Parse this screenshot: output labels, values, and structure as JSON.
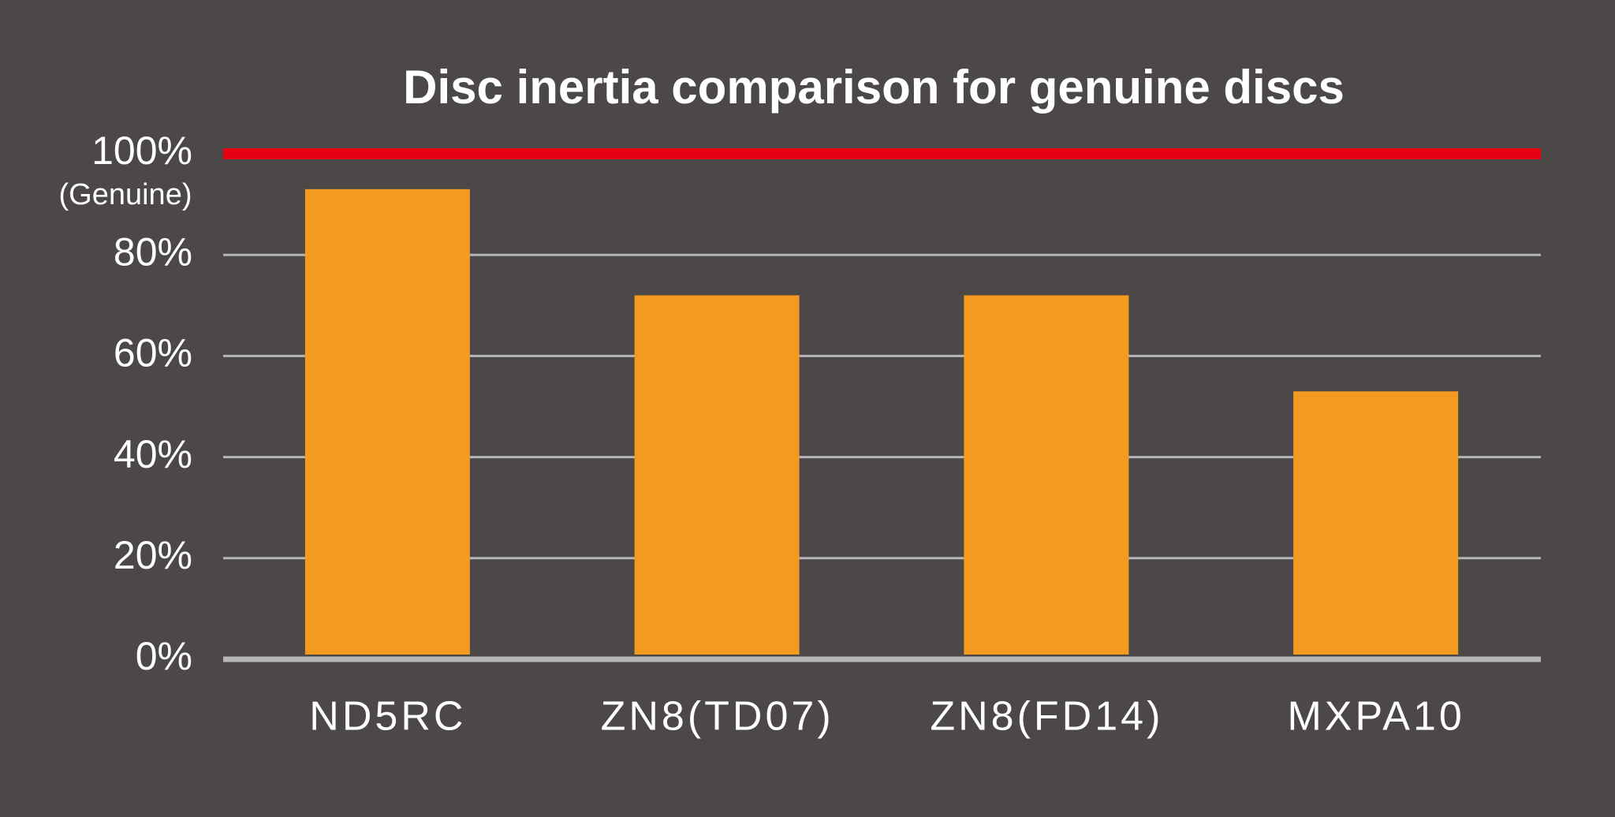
{
  "chart_data": {
    "type": "bar",
    "title": "Disc inertia comparison for genuine discs",
    "categories": [
      "ND5RC",
      "ZN8(TD07)",
      "ZN8(FD14)",
      "MXPA10"
    ],
    "values": [
      93,
      72,
      72,
      53
    ],
    "color": "#f39a21",
    "ylim": [
      0,
      100
    ],
    "yticks": [
      {
        "value": 0,
        "label": "0%"
      },
      {
        "value": 20,
        "label": "20%"
      },
      {
        "value": 40,
        "label": "40%"
      },
      {
        "value": 60,
        "label": "60%"
      },
      {
        "value": 80,
        "label": "80%"
      },
      {
        "value": 100,
        "label": "100%"
      }
    ],
    "grid": true,
    "reference": {
      "value": 100,
      "label": "(Genuine)",
      "color": "#e60012"
    }
  }
}
